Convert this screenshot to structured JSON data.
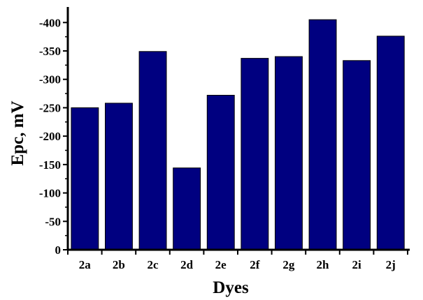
{
  "chart_data": {
    "type": "bar",
    "title": "",
    "xlabel": "Dyes",
    "ylabel": "Epc, mV",
    "categories": [
      "2a",
      "2b",
      "2c",
      "2d",
      "2e",
      "2f",
      "2g",
      "2h",
      "2i",
      "2j"
    ],
    "values": [
      -250,
      -258,
      -349,
      -144,
      -272,
      -337,
      -340,
      -405,
      -333,
      -376
    ],
    "ylim": [
      0,
      -420
    ],
    "yticks": [
      0,
      -50,
      -100,
      -150,
      -200,
      -250,
      -300,
      -350,
      -400
    ],
    "ytick_labels": [
      "0",
      "-50",
      "-100",
      "-150",
      "-200",
      "-250",
      "-300",
      "-350",
      "-400"
    ],
    "grid": false,
    "legend": "none",
    "colors": {
      "bar_fill": "#000080",
      "bar_edge": "#000000",
      "axis": "#000000"
    }
  }
}
